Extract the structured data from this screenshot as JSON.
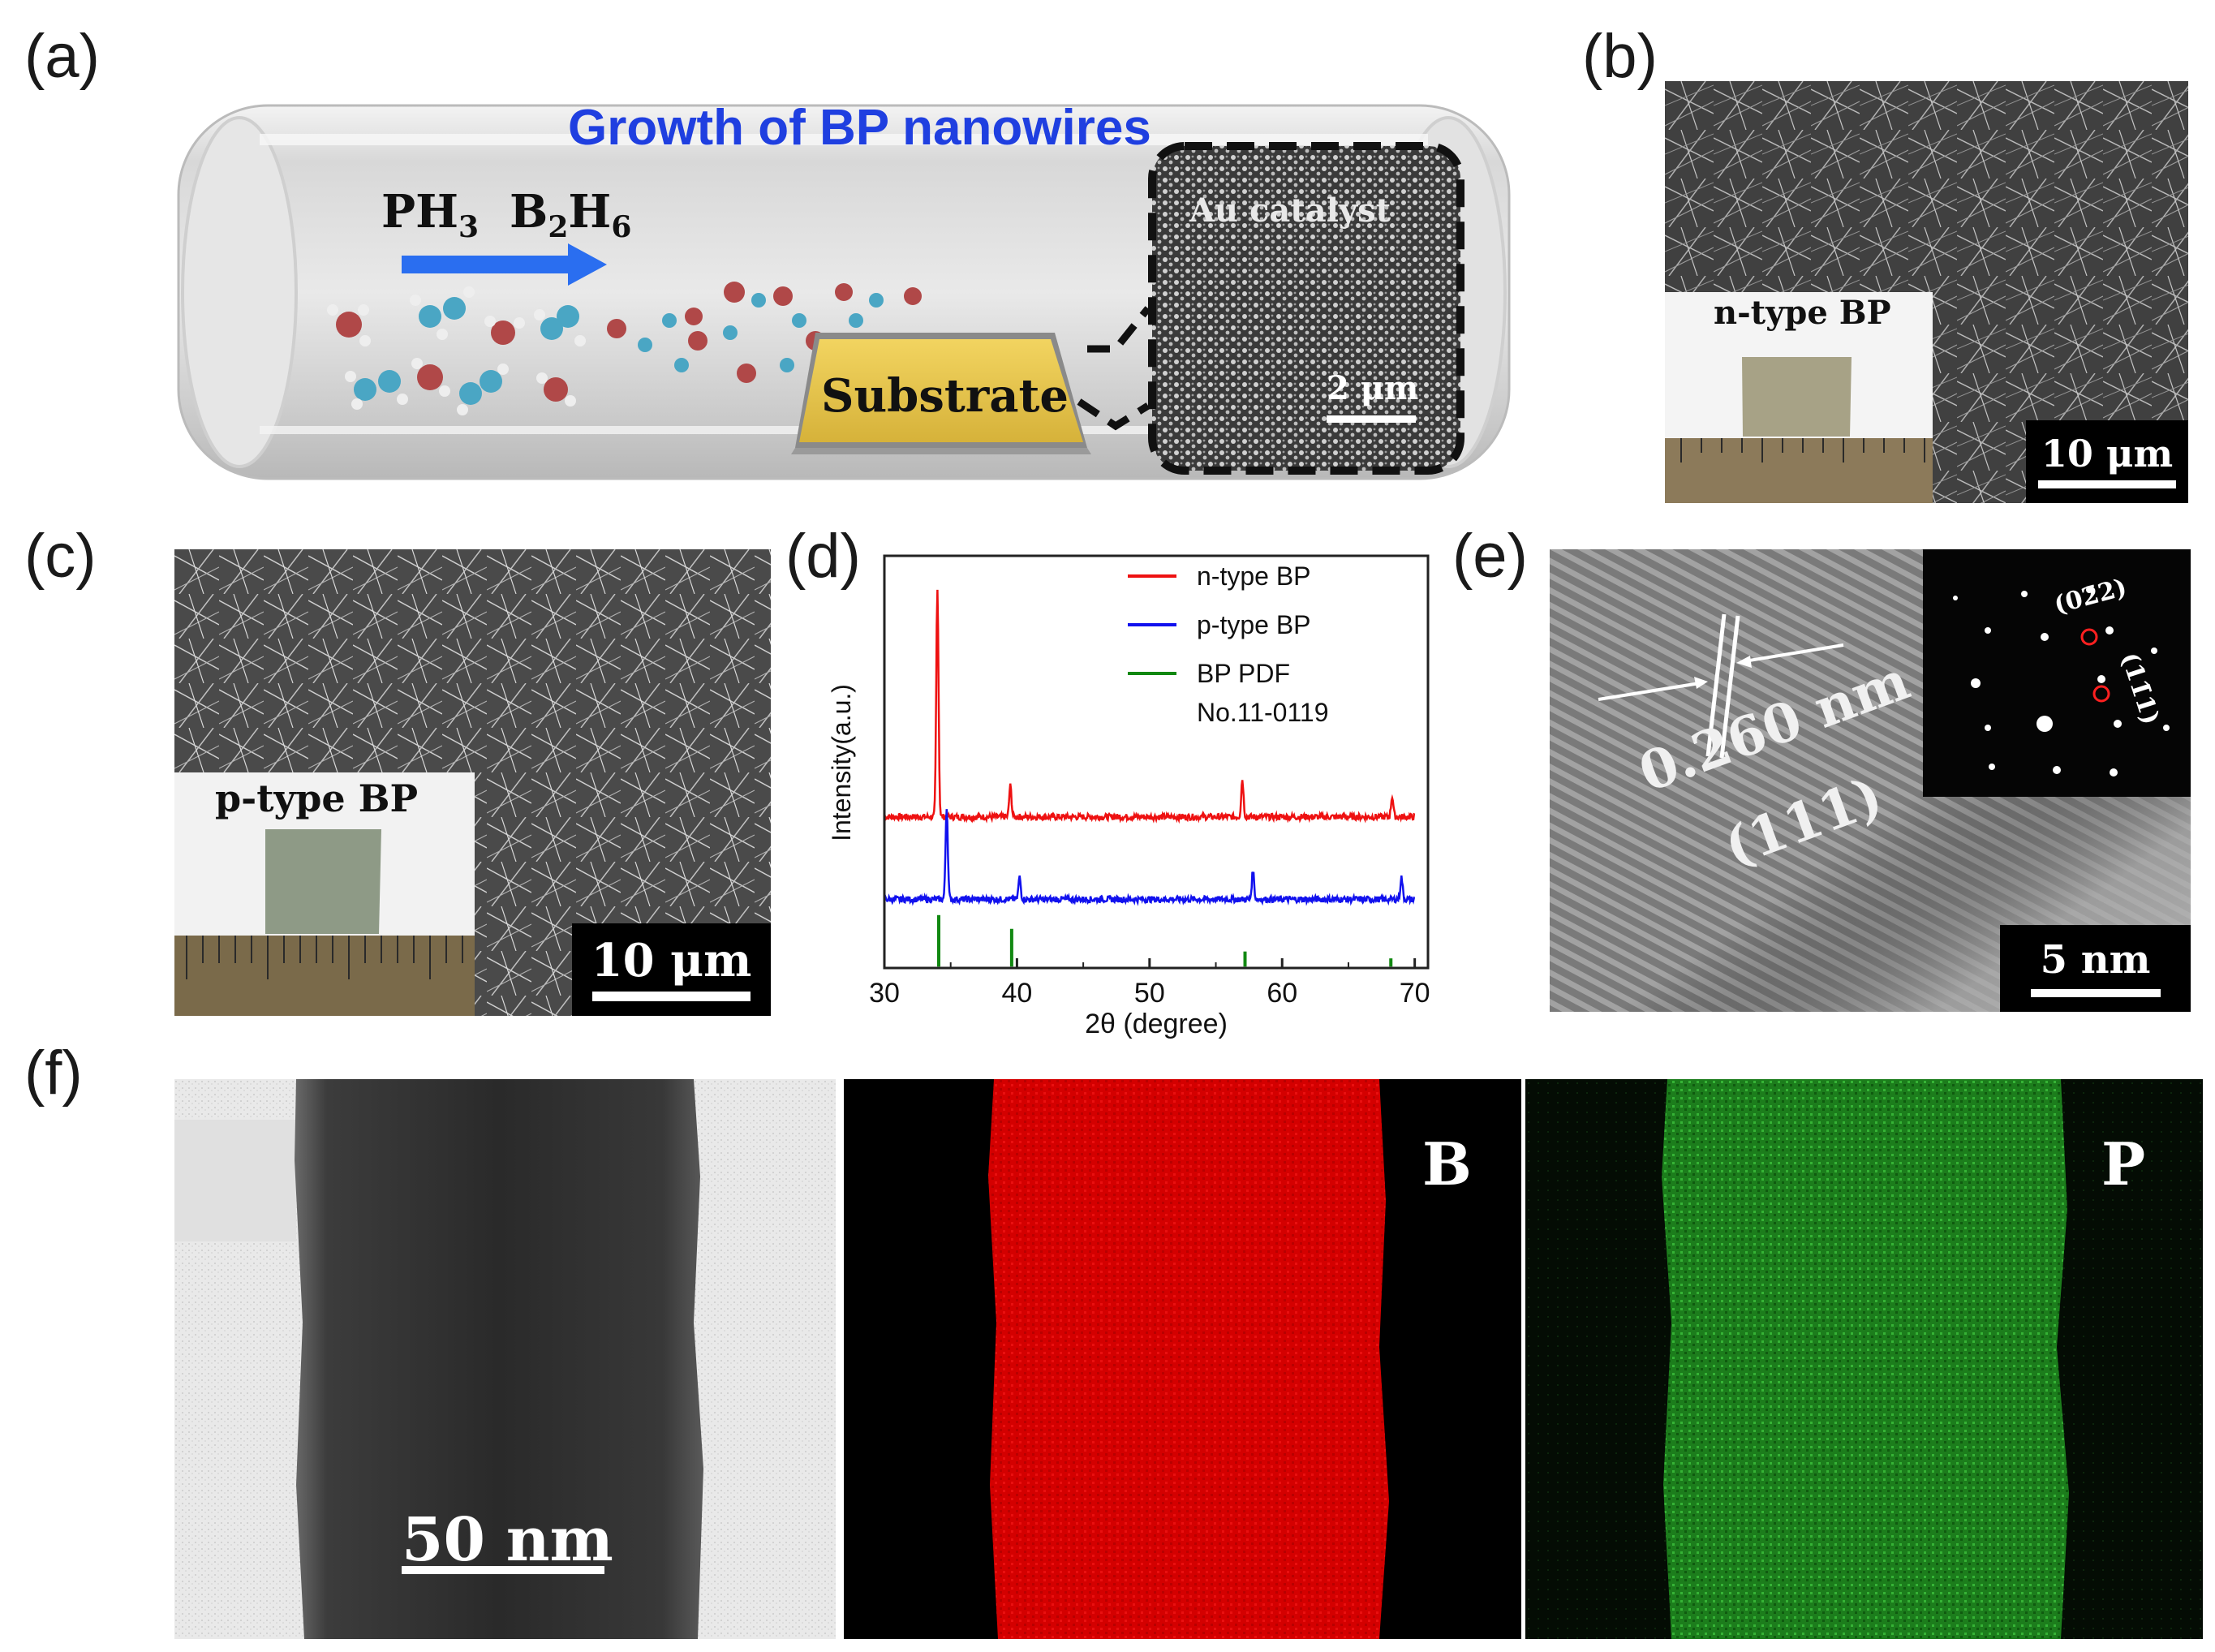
{
  "panels": {
    "a": {
      "label": "(a)",
      "title": "Growth of BP nanowires",
      "precursor_1": "PH",
      "precursor_1_sub": "3",
      "precursor_2_b": "B",
      "precursor_2_sub1": "2",
      "precursor_2_h": "H",
      "precursor_2_sub2": "6",
      "substrate_label": "Substrate",
      "inset_label": "Au catalyst",
      "inset_scale": "2 μm",
      "colors": {
        "title": "#1f3fe0",
        "arrow": "#2a6ef0",
        "substrate": "#e8c84a"
      }
    },
    "b": {
      "label": "(b)",
      "inset_label": "n-type BP",
      "scale": "10 μm"
    },
    "c": {
      "label": "(c)",
      "inset_label": "p-type BP",
      "scale": "10 μm"
    },
    "d": {
      "label": "(d)"
    },
    "e": {
      "label": "(e)",
      "d_spacing": "0.260 nm",
      "plane": "(111)",
      "saed_1": "(02̄2)",
      "saed_2": "(11̄1)",
      "scale": "5 nm"
    },
    "f": {
      "label": "(f)",
      "scale": "50 nm",
      "map_b": "B",
      "map_p": "P",
      "colors": {
        "B": "#e00000",
        "P": "#2aa82a"
      }
    }
  },
  "chart_data": {
    "type": "line",
    "xlabel": "2θ (degree)",
    "ylabel": "Intensity(a.u.)",
    "xlim": [
      30,
      71
    ],
    "xticks": [
      30,
      40,
      50,
      60,
      70
    ],
    "legend_position": "top-right",
    "grid": false,
    "series": [
      {
        "name": "n-type BP",
        "color": "#ee1111",
        "offset": 2.2,
        "baseline": 0.0,
        "peaks": [
          [
            34.0,
            3.3
          ],
          [
            39.5,
            0.45
          ],
          [
            57.0,
            0.55
          ],
          [
            68.3,
            0.3
          ]
        ]
      },
      {
        "name": "p-type BP",
        "color": "#1111ee",
        "offset": 1.0,
        "baseline": 0.0,
        "peaks": [
          [
            34.7,
            1.35
          ],
          [
            40.2,
            0.32
          ],
          [
            57.8,
            0.42
          ],
          [
            69.0,
            0.32
          ]
        ]
      }
    ],
    "reference": {
      "name": "BP PDF",
      "name_line2": "No.11-0119",
      "color": "#118811",
      "sticks": [
        [
          34.1,
          0.75
        ],
        [
          39.6,
          0.55
        ],
        [
          57.2,
          0.22
        ],
        [
          68.2,
          0.12
        ]
      ]
    }
  }
}
